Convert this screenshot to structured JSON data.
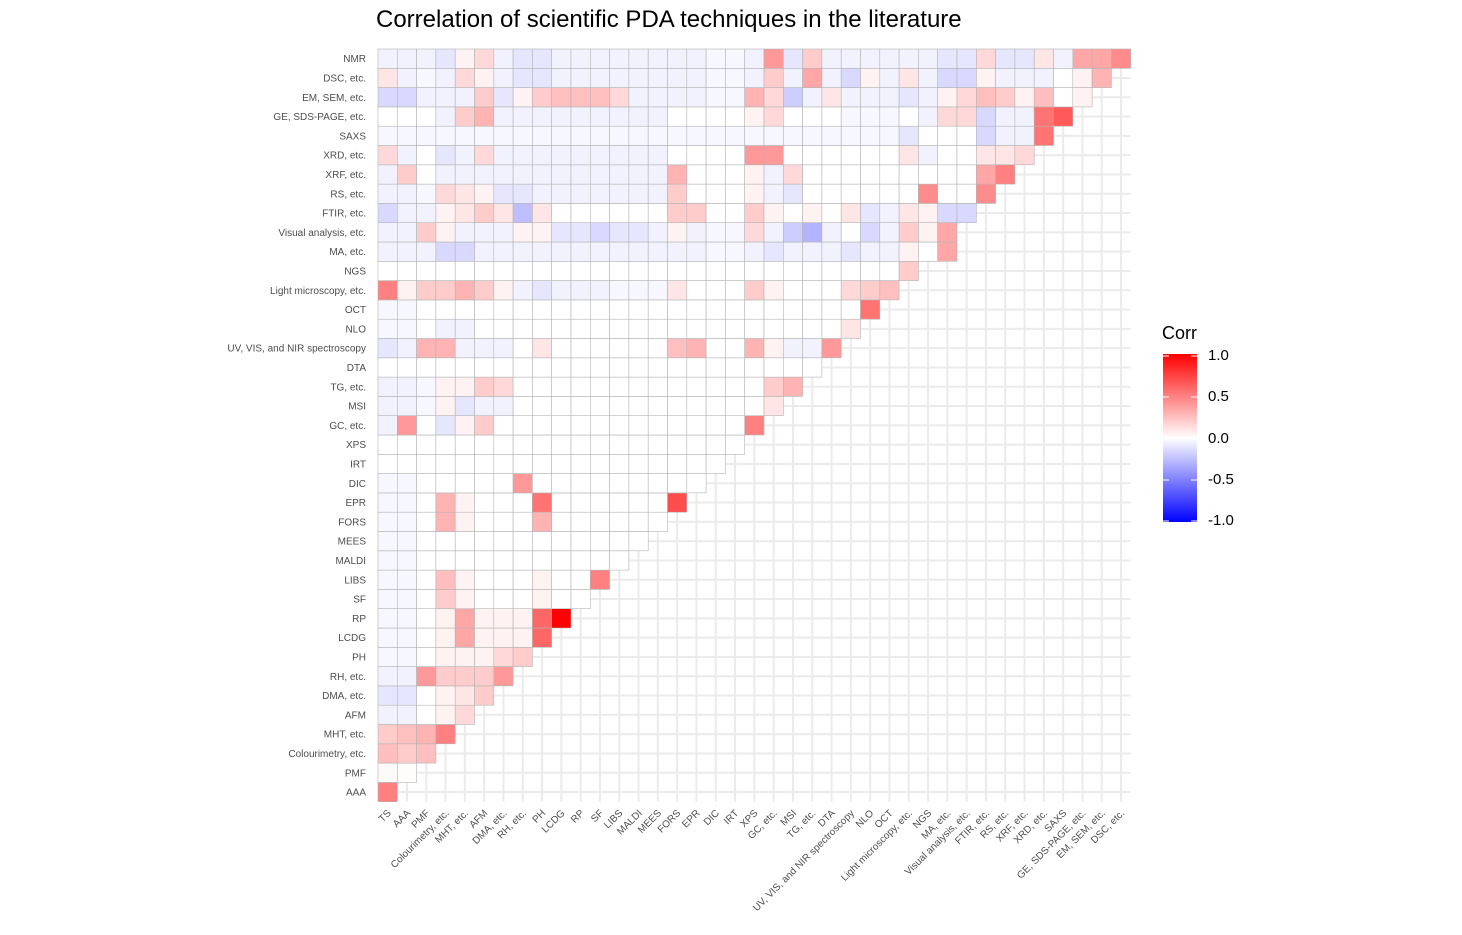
{
  "title": "Correlation of scientific PDA techniques in the literature",
  "chart_data": {
    "type": "heatmap",
    "title": "Correlation of scientific PDA techniques in the literature",
    "labels": [
      "TS",
      "AAA",
      "PMF",
      "Colourimetry, etc.",
      "MHT, etc.",
      "AFM",
      "DMA, etc.",
      "RH, etc.",
      "PH",
      "LCDG",
      "RP",
      "SF",
      "LIBS",
      "MALDI",
      "MEES",
      "FORS",
      "EPR",
      "DIC",
      "IRT",
      "XPS",
      "GC, etc.",
      "MSI",
      "TG, etc.",
      "DTA",
      "UV, VIS, and NIR spectroscopy",
      "NLO",
      "OCT",
      "Light microscopy, etc.",
      "NGS",
      "MA, etc.",
      "Visual analysis, etc.",
      "FTIR, etc.",
      "RS, etc.",
      "XRF, etc.",
      "XRD, etc.",
      "SAXS",
      "GE, SDS-PAGE, etc.",
      "EM, SEM, etc.",
      "DSC, etc.",
      "NMR"
    ],
    "y_labels_display": [
      "AAA",
      "PMF",
      "Colourimetry, etc.",
      "MHT, etc.",
      "AFM",
      "DMA, etc.",
      "RH, etc.",
      "PH",
      "LCDG",
      "RP",
      "SF",
      "LIBS",
      "MALDI",
      "MEES",
      "FORS",
      "EPR",
      "DIC",
      "IRT",
      "XPS",
      "GC, etc.",
      "MSI",
      "TG, etc.",
      "DTA",
      "UV, VIS, and NIR spectroscopy",
      "NLO",
      "OCT",
      "Light microscopy, etc.",
      "NGS",
      "MA, etc.",
      "Visual analysis, etc.",
      "FTIR, etc.",
      "RS, etc.",
      "XRF, etc.",
      "XRD, etc.",
      "SAXS",
      "GE, SDS-PAGE, etc.",
      "EM, SEM, etc.",
      "DSC, etc.",
      "NMR"
    ],
    "x_labels_display": [
      "TS",
      "AAA",
      "PMF",
      "Colourimetry, etc.",
      "MHT, etc.",
      "AFM",
      "DMA, etc.",
      "RH, etc.",
      "PH",
      "LCDG",
      "RP",
      "SF",
      "LIBS",
      "MALDI",
      "MEES",
      "FORS",
      "EPR",
      "DIC",
      "IRT",
      "XPS",
      "GC, etc.",
      "MSI",
      "TG, etc.",
      "DTA",
      "UV, VIS, and NIR spectroscopy",
      "NLO",
      "OCT",
      "Light microscopy, etc.",
      "NGS",
      "MA, etc.",
      "Visual analysis, etc.",
      "FTIR, etc.",
      "RS, etc.",
      "XRF, etc.",
      "XRD, etc.",
      "SAXS",
      "GE, SDS-PAGE, etc.",
      "EM, SEM, etc.",
      "DSC, etc."
    ],
    "values": [
      [
        0.5
      ],
      [
        0.02,
        0.01
      ],
      [
        0.25,
        0.2,
        0.25
      ],
      [
        0.2,
        0.25,
        0.3,
        0.5
      ],
      [
        -0.05,
        -0.05,
        0.0,
        0.05,
        0.15
      ],
      [
        -0.1,
        -0.1,
        0.0,
        0.05,
        0.1,
        0.2
      ],
      [
        -0.05,
        -0.05,
        0.4,
        0.2,
        0.2,
        0.2,
        0.4
      ],
      [
        -0.03,
        -0.03,
        0.0,
        0.05,
        0.05,
        0.05,
        0.15,
        0.2
      ],
      [
        -0.03,
        -0.03,
        0.0,
        0.05,
        0.35,
        0.05,
        0.05,
        0.05,
        0.6
      ],
      [
        -0.03,
        -0.03,
        0.0,
        0.05,
        0.35,
        0.05,
        0.05,
        0.05,
        0.6,
        1.0
      ],
      [
        -0.03,
        -0.03,
        0.0,
        0.2,
        0.05,
        0.0,
        0.0,
        0.0,
        0.05,
        0.0,
        0.0
      ],
      [
        -0.03,
        -0.03,
        0.0,
        0.25,
        0.05,
        0.0,
        0.0,
        0.0,
        0.05,
        0.0,
        0.0,
        0.5
      ],
      [
        -0.03,
        -0.03,
        0.0,
        0.0,
        0.0,
        0.0,
        0.0,
        0.0,
        0.0,
        0.0,
        0.0,
        0.0,
        0.0
      ],
      [
        -0.03,
        -0.03,
        0.0,
        0.0,
        0.0,
        0.0,
        0.0,
        0.0,
        0.0,
        0.0,
        0.0,
        0.0,
        0.0,
        0.0
      ],
      [
        -0.03,
        -0.03,
        0.0,
        0.3,
        0.05,
        0.0,
        0.0,
        0.0,
        0.3,
        0.0,
        0.0,
        0.0,
        0.0,
        0.0,
        0.0
      ],
      [
        -0.03,
        -0.03,
        0.0,
        0.3,
        0.05,
        0.0,
        0.0,
        0.0,
        0.55,
        0.0,
        0.0,
        0.0,
        0.0,
        0.0,
        0.0,
        0.7
      ],
      [
        -0.03,
        -0.03,
        0.0,
        0.0,
        0.0,
        0.0,
        0.0,
        0.4,
        0.0,
        0.0,
        0.0,
        0.0,
        0.0,
        0.0,
        0.0,
        0.0,
        0.0
      ],
      [
        0.0,
        0.0,
        0.0,
        0.0,
        0.0,
        0.0,
        0.0,
        0.0,
        0.0,
        0.0,
        0.0,
        0.0,
        0.0,
        0.0,
        0.0,
        0.0,
        0.0,
        0.0
      ],
      [
        0.0,
        0.0,
        0.0,
        0.0,
        0.0,
        0.0,
        0.0,
        0.0,
        0.0,
        0.0,
        0.0,
        0.0,
        0.0,
        0.0,
        0.0,
        0.0,
        0.0,
        0.0,
        0.0
      ],
      [
        -0.05,
        0.4,
        0.0,
        -0.1,
        0.05,
        0.2,
        0.0,
        0.0,
        0.0,
        0.0,
        0.0,
        0.0,
        0.0,
        0.0,
        0.0,
        0.0,
        0.0,
        0.0,
        0.0,
        0.5
      ],
      [
        -0.05,
        -0.05,
        -0.03,
        0.05,
        -0.1,
        -0.05,
        -0.05,
        0.0,
        0.0,
        0.0,
        0.0,
        0.0,
        0.0,
        0.0,
        0.0,
        0.0,
        0.0,
        0.0,
        0.0,
        0.0,
        0.1
      ],
      [
        -0.05,
        -0.05,
        -0.03,
        0.05,
        0.05,
        0.2,
        0.15,
        0.0,
        0.0,
        0.0,
        0.0,
        0.0,
        0.0,
        0.0,
        0.0,
        0.0,
        0.0,
        0.0,
        0.0,
        0.0,
        0.2,
        0.3
      ],
      [
        0.0,
        0.0,
        0.0,
        0.0,
        0.0,
        0.0,
        0.0,
        0.0,
        0.0,
        0.0,
        0.0,
        0.0,
        0.0,
        0.0,
        0.0,
        0.0,
        0.0,
        0.0,
        0.0,
        0.0,
        0.0,
        0.0,
        0.0
      ],
      [
        -0.1,
        -0.05,
        0.3,
        0.3,
        -0.05,
        -0.05,
        -0.05,
        0.0,
        0.1,
        0.0,
        0.0,
        0.0,
        0.0,
        0.0,
        0.0,
        0.25,
        0.3,
        0.0,
        0.0,
        0.3,
        0.05,
        -0.05,
        -0.05,
        0.4
      ],
      [
        -0.03,
        -0.03,
        0.0,
        -0.05,
        -0.05,
        0.0,
        0.0,
        0.0,
        0.0,
        0.0,
        0.0,
        0.0,
        0.0,
        0.0,
        0.0,
        0.0,
        0.0,
        0.0,
        0.0,
        0.0,
        0.0,
        0.0,
        0.0,
        0.0,
        0.1
      ],
      [
        -0.03,
        -0.03,
        0.0,
        0.0,
        0.0,
        0.0,
        0.0,
        0.0,
        0.0,
        0.0,
        0.0,
        0.0,
        0.0,
        0.0,
        0.0,
        0.0,
        0.0,
        0.0,
        0.0,
        0.0,
        0.0,
        0.0,
        0.0,
        0.0,
        0.0,
        0.55
      ],
      [
        0.5,
        0.05,
        0.2,
        0.2,
        0.3,
        0.2,
        0.05,
        -0.05,
        -0.1,
        -0.05,
        -0.05,
        -0.05,
        -0.03,
        -0.03,
        -0.03,
        0.1,
        0.0,
        0.0,
        0.0,
        0.2,
        0.05,
        0.0,
        0.0,
        0.0,
        0.15,
        0.2,
        0.25
      ],
      [
        0.0,
        0.0,
        0.0,
        0.0,
        0.0,
        0.0,
        0.0,
        0.0,
        0.0,
        0.0,
        0.0,
        0.0,
        0.0,
        0.0,
        0.0,
        0.0,
        0.0,
        0.0,
        0.0,
        0.0,
        0.0,
        0.0,
        0.0,
        0.0,
        0.0,
        0.0,
        0.0,
        0.2
      ],
      [
        -0.05,
        -0.05,
        -0.05,
        -0.15,
        -0.15,
        -0.05,
        -0.05,
        -0.05,
        -0.05,
        -0.05,
        -0.05,
        -0.05,
        -0.05,
        -0.05,
        -0.05,
        -0.05,
        -0.05,
        -0.03,
        -0.03,
        -0.05,
        -0.1,
        -0.05,
        -0.05,
        -0.05,
        -0.1,
        -0.05,
        -0.05,
        0.05,
        0.0,
        0.35
      ],
      [
        -0.05,
        -0.05,
        0.2,
        0.05,
        -0.05,
        -0.05,
        -0.05,
        0.05,
        0.05,
        -0.1,
        -0.1,
        -0.15,
        -0.1,
        -0.1,
        -0.05,
        0.05,
        -0.05,
        -0.03,
        -0.03,
        0.15,
        -0.05,
        -0.2,
        -0.3,
        -0.05,
        0.0,
        -0.15,
        -0.05,
        0.2,
        0.05,
        0.35
      ],
      [
        -0.15,
        -0.05,
        -0.05,
        0.05,
        0.1,
        0.2,
        0.1,
        -0.25,
        0.1,
        0.0,
        0.0,
        0.0,
        0.0,
        0.0,
        0.0,
        0.2,
        0.2,
        0.0,
        0.0,
        0.2,
        0.05,
        0.0,
        0.05,
        0.0,
        0.1,
        -0.1,
        -0.05,
        0.1,
        0.05,
        -0.15,
        -0.15
      ],
      [
        -0.05,
        -0.05,
        -0.03,
        0.15,
        0.1,
        0.05,
        -0.1,
        -0.1,
        -0.05,
        -0.05,
        -0.05,
        -0.05,
        -0.05,
        -0.05,
        -0.05,
        0.2,
        0.0,
        0.0,
        0.0,
        0.05,
        -0.05,
        -0.1,
        0.0,
        0.0,
        0.0,
        0.0,
        0.0,
        0.0,
        0.45,
        0.0,
        0.0,
        0.45
      ],
      [
        -0.05,
        0.2,
        0.0,
        -0.05,
        -0.05,
        -0.05,
        -0.05,
        -0.05,
        -0.05,
        -0.05,
        -0.05,
        -0.05,
        -0.05,
        -0.05,
        -0.05,
        0.3,
        0.0,
        0.0,
        0.0,
        0.05,
        -0.05,
        0.15,
        0.0,
        0.0,
        0.0,
        0.0,
        0.0,
        0.0,
        0.0,
        0.0,
        0.0,
        0.35,
        0.5
      ],
      [
        0.15,
        -0.05,
        0.0,
        -0.1,
        -0.05,
        0.15,
        -0.05,
        -0.05,
        -0.05,
        -0.05,
        -0.05,
        -0.05,
        -0.05,
        -0.05,
        -0.05,
        0.0,
        0.0,
        0.0,
        0.0,
        0.4,
        0.4,
        0.0,
        0.0,
        0.0,
        0.0,
        0.0,
        0.0,
        0.1,
        -0.05,
        0.0,
        0.0,
        0.1,
        0.1,
        0.15
      ],
      [
        -0.03,
        -0.03,
        -0.03,
        -0.03,
        -0.03,
        -0.03,
        -0.03,
        -0.03,
        -0.03,
        -0.03,
        -0.03,
        -0.03,
        -0.03,
        -0.03,
        -0.03,
        -0.03,
        -0.03,
        -0.03,
        -0.03,
        -0.03,
        -0.03,
        -0.03,
        -0.03,
        -0.03,
        -0.03,
        -0.03,
        -0.03,
        -0.1,
        0.0,
        0.0,
        0.0,
        -0.15,
        -0.05,
        -0.05,
        0.55
      ],
      [
        0.0,
        0.0,
        0.0,
        -0.05,
        0.2,
        0.3,
        -0.05,
        -0.05,
        -0.05,
        -0.05,
        -0.05,
        -0.05,
        -0.05,
        -0.05,
        -0.05,
        0.0,
        0.0,
        0.0,
        0.0,
        0.05,
        0.15,
        0.0,
        0.0,
        0.0,
        -0.03,
        -0.03,
        -0.03,
        0.0,
        -0.05,
        0.15,
        0.15,
        -0.15,
        -0.05,
        -0.05,
        0.55,
        0.65
      ],
      [
        -0.15,
        -0.15,
        -0.05,
        -0.05,
        -0.05,
        0.2,
        -0.1,
        0.05,
        0.2,
        0.25,
        0.25,
        0.25,
        0.15,
        -0.05,
        -0.05,
        -0.05,
        -0.05,
        -0.03,
        -0.03,
        0.3,
        0.15,
        -0.2,
        -0.05,
        0.1,
        -0.05,
        -0.05,
        -0.05,
        -0.1,
        -0.05,
        0.05,
        0.15,
        0.25,
        0.2,
        0.05,
        0.25,
        0.0,
        0.05
      ],
      [
        0.1,
        -0.05,
        -0.03,
        -0.05,
        0.15,
        0.05,
        -0.05,
        -0.1,
        -0.1,
        -0.05,
        -0.05,
        -0.05,
        -0.05,
        -0.05,
        -0.05,
        -0.05,
        -0.05,
        -0.03,
        -0.03,
        -0.05,
        0.2,
        -0.05,
        0.35,
        -0.05,
        -0.15,
        0.05,
        -0.05,
        0.1,
        -0.05,
        -0.15,
        -0.15,
        0.05,
        -0.05,
        -0.05,
        -0.05,
        0.0,
        0.05,
        0.3
      ],
      [
        -0.05,
        -0.05,
        -0.05,
        -0.1,
        0.05,
        0.15,
        -0.05,
        -0.1,
        -0.1,
        -0.05,
        -0.05,
        -0.05,
        -0.05,
        -0.05,
        -0.05,
        -0.05,
        -0.05,
        -0.03,
        -0.03,
        -0.05,
        0.4,
        -0.1,
        0.2,
        -0.05,
        -0.05,
        -0.05,
        -0.05,
        -0.05,
        -0.05,
        -0.1,
        -0.1,
        0.15,
        -0.1,
        -0.1,
        0.1,
        -0.05,
        0.35,
        0.35,
        0.45
      ]
    ],
    "legend_title": "Corr",
    "legend_ticks": [
      "1.0",
      "0.5",
      "0.0",
      "-0.5",
      "-1.0"
    ],
    "scale": {
      "min": -1,
      "max": 1
    },
    "colors": {
      "low": "#0000ff",
      "mid": "#ffffff",
      "high": "#ff0000",
      "grid": "#ebebeb",
      "tile_border": "#b3b3b3"
    }
  }
}
